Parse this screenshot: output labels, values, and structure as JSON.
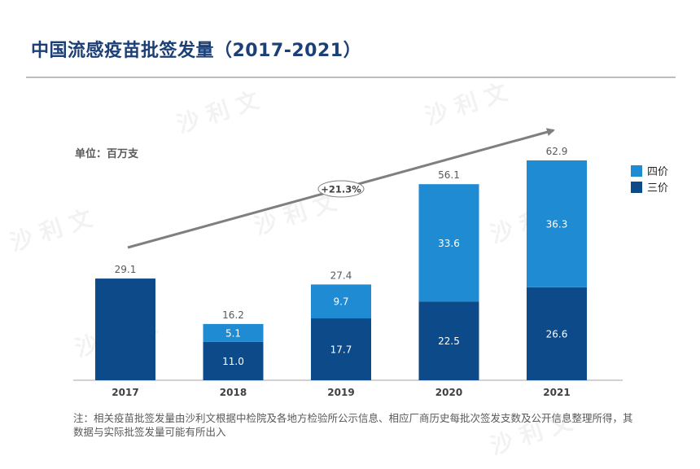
{
  "page": {
    "title": "中国流感疫苗批签发量（2017-2021）",
    "unit_label": "单位：百万支",
    "note": "注：相关疫苗批签发量由沙利文根据中检院及各地方检验所公示信息、相应厂商历史每批次签发支数及公开信息整理所得，其数据与实际批签发量可能有所出入",
    "watermark": "沙利文"
  },
  "chart_data": {
    "type": "bar",
    "stacked": true,
    "categories": [
      "2017",
      "2018",
      "2019",
      "2020",
      "2021"
    ],
    "series": [
      {
        "name": "三价",
        "color": "#0d4a8a",
        "values": [
          29.1,
          11.0,
          17.7,
          22.5,
          26.6
        ],
        "labels": [
          "",
          "11.0",
          "17.7",
          "22.5",
          "26.6"
        ]
      },
      {
        "name": "四价",
        "color": "#1f8bd3",
        "values": [
          0,
          5.1,
          9.7,
          33.6,
          36.3
        ],
        "labels": [
          "",
          "5.1",
          "9.7",
          "33.6",
          "36.3"
        ]
      }
    ],
    "totals": [
      "29.1",
      "16.2",
      "27.4",
      "56.1",
      "62.9"
    ],
    "cagr_label": "+21.3%",
    "legend_position": "right",
    "ylim": [
      0,
      70
    ],
    "grid": false
  }
}
